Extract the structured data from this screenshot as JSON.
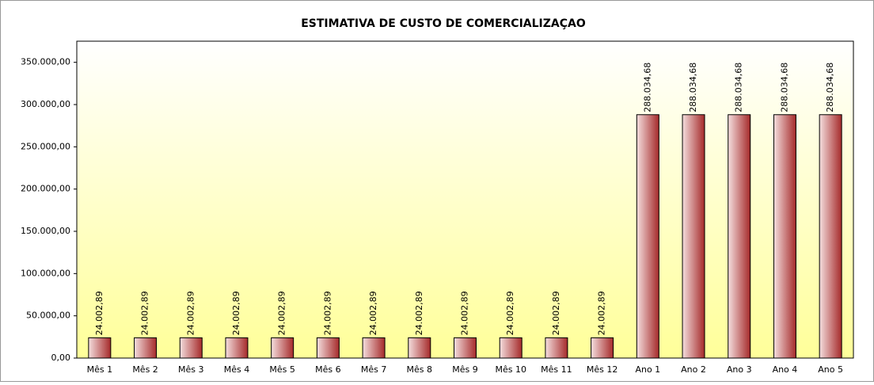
{
  "chart_data": {
    "type": "bar",
    "title": "ESTIMATIVA DE CUSTO DE COMERCIALIZAÇAO",
    "categories": [
      "Mês 1",
      "Mês 2",
      "Mês 3",
      "Mês 4",
      "Mês 5",
      "Mês 6",
      "Mês 7",
      "Mês 8",
      "Mês 9",
      "Mês 10",
      "Mês 11",
      "Mês 12",
      "Ano 1",
      "Ano 2",
      "Ano 3",
      "Ano 4",
      "Ano 5"
    ],
    "values": [
      24002.89,
      24002.89,
      24002.89,
      24002.89,
      24002.89,
      24002.89,
      24002.89,
      24002.89,
      24002.89,
      24002.89,
      24002.89,
      24002.89,
      288034.68,
      288034.68,
      288034.68,
      288034.68,
      288034.68
    ],
    "value_labels": [
      "24.002,89",
      "24.002,89",
      "24.002,89",
      "24.002,89",
      "24.002,89",
      "24.002,89",
      "24.002,89",
      "24.002,89",
      "24.002,89",
      "24.002,89",
      "24.002,89",
      "24.002,89",
      "288.034,68",
      "288.034,68",
      "288.034,68",
      "288.034,68",
      "288.034,68"
    ],
    "color": "#a52a2a",
    "ylim": [
      0,
      375000
    ],
    "yticks": [
      {
        "value": 0,
        "label": "0,00"
      },
      {
        "value": 50000,
        "label": "50.000,00"
      },
      {
        "value": 100000,
        "label": "100.000,00"
      },
      {
        "value": 150000,
        "label": "150.000,00"
      },
      {
        "value": 200000,
        "label": "200.000,00"
      },
      {
        "value": 250000,
        "label": "250.000,00"
      },
      {
        "value": 300000,
        "label": "300.000,00"
      },
      {
        "value": 350000,
        "label": "350.000,00"
      }
    ]
  }
}
